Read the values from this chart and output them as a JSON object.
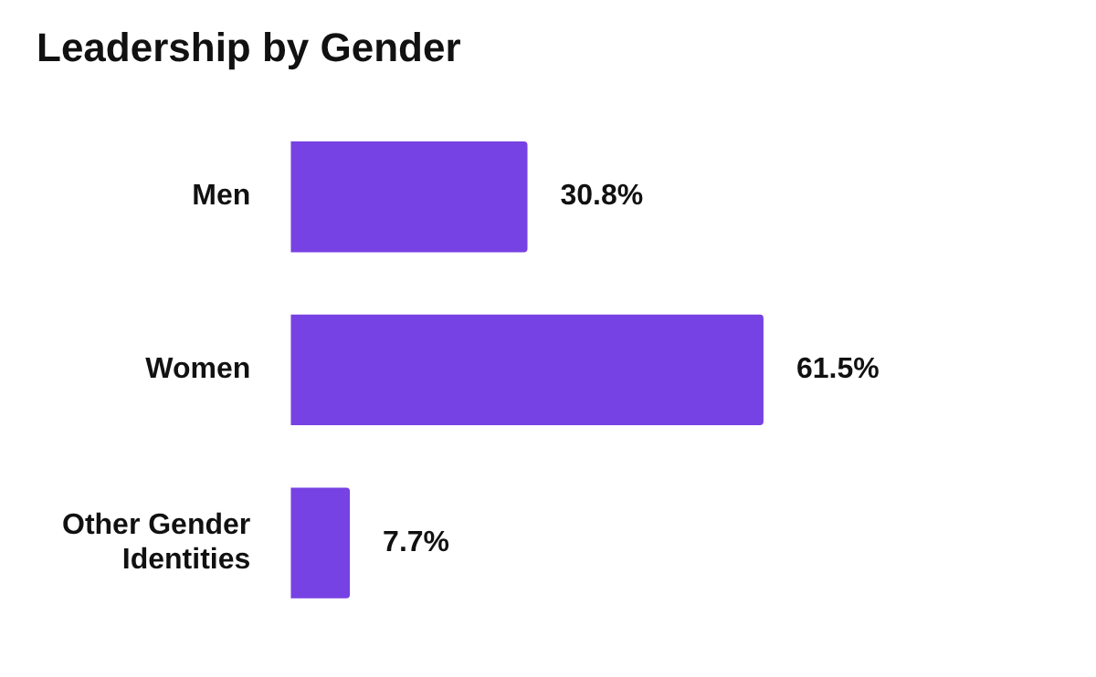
{
  "chart_data": {
    "type": "bar",
    "title": "Leadership by Gender",
    "orientation": "horizontal",
    "categories": [
      "Men",
      "Women",
      "Other Gender Identities"
    ],
    "values": [
      30.8,
      61.5,
      7.7
    ],
    "color": "#7742e3",
    "value_labels": [
      "30.8%",
      "61.5%",
      "7.7%"
    ],
    "grid": false,
    "legend": false
  }
}
